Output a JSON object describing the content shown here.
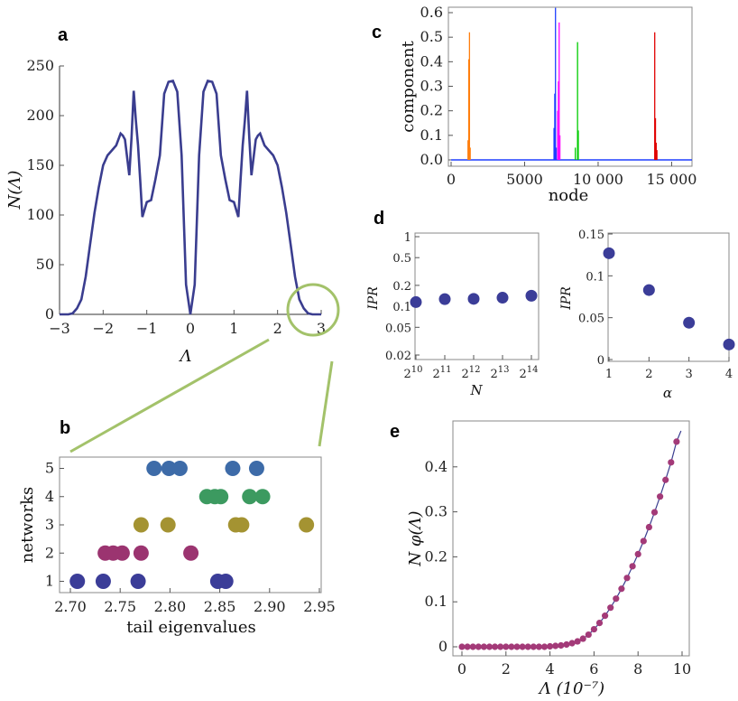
{
  "colors": {
    "navy": "#3a3d8f",
    "dot_navy": "#3b3d98",
    "magenta": "#9b3470",
    "olive": "#a49332",
    "green": "#3c9a60",
    "steelblue": "#3d6ba8",
    "highlight": "#a3c26a",
    "purple_dot": "#a33a78",
    "fit_line": "#3a3d8f"
  },
  "chart_data": [
    {
      "id": "a",
      "type": "line",
      "panel_label": "a",
      "xlabel": "Λ",
      "ylabel": "N(Λ)",
      "xlim": [
        -3,
        3
      ],
      "ylim": [
        0,
        250
      ],
      "xticks": [
        -3,
        -2,
        -1,
        0,
        1,
        2,
        3
      ],
      "xtick_labels": [
        "−3",
        "−2",
        "−1",
        "0",
        "1",
        "2",
        "3"
      ],
      "yticks": [
        0,
        50,
        100,
        150,
        200,
        250
      ],
      "ytick_labels": [
        "0",
        "50",
        "100",
        "150",
        "200",
        "250"
      ],
      "x": [
        0.0,
        0.1,
        0.2,
        0.3,
        0.4,
        0.5,
        0.6,
        0.7,
        0.8,
        0.9,
        1.0,
        1.1,
        1.15,
        1.2,
        1.25,
        1.3,
        1.35,
        1.4,
        1.45,
        1.5,
        1.55,
        1.6,
        1.7,
        1.8,
        1.9,
        2.0,
        2.1,
        2.2,
        2.3,
        2.4,
        2.5,
        2.6,
        2.7,
        2.8,
        2.9,
        3.0
      ],
      "y": [
        0,
        30,
        160,
        224,
        235,
        234,
        222,
        160,
        136,
        115,
        113,
        98,
        135,
        170,
        195,
        225,
        178,
        140,
        158,
        176,
        180,
        182,
        170,
        165,
        160,
        150,
        128,
        102,
        70,
        38,
        15,
        6,
        1,
        0,
        0,
        0
      ],
      "symmetric": true,
      "annotations": [
        "highlight circle at Λ = 3 (tail)"
      ]
    },
    {
      "id": "b",
      "type": "scatter",
      "panel_label": "b",
      "xlabel": "tail eigenvalues",
      "ylabel": "networks",
      "xlim": [
        2.7,
        2.95
      ],
      "ylim": [
        0.6,
        5.4
      ],
      "xticks": [
        2.7,
        2.75,
        2.8,
        2.85,
        2.9,
        2.95
      ],
      "xtick_labels": [
        "2.70",
        "2.75",
        "2.80",
        "2.85",
        "2.90",
        "2.95"
      ],
      "yticks": [
        1,
        2,
        3,
        4,
        5
      ],
      "ytick_labels": [
        "1",
        "2",
        "3",
        "4",
        "5"
      ],
      "series": [
        {
          "name": "1",
          "color": "#3b3d98",
          "y": 1,
          "x": [
            2.707,
            2.733,
            2.768,
            2.848,
            2.856
          ]
        },
        {
          "name": "2",
          "color": "#9b3470",
          "y": 2,
          "x": [
            2.735,
            2.743,
            2.752,
            2.771,
            2.821
          ]
        },
        {
          "name": "3",
          "color": "#a49332",
          "y": 3,
          "x": [
            2.771,
            2.798,
            2.866,
            2.872,
            2.937
          ]
        },
        {
          "name": "4",
          "color": "#3c9a60",
          "y": 4,
          "x": [
            2.837,
            2.845,
            2.851,
            2.88,
            2.893
          ]
        },
        {
          "name": "5",
          "color": "#3d6ba8",
          "y": 5,
          "x": [
            2.784,
            2.799,
            2.81,
            2.863,
            2.887
          ]
        }
      ]
    },
    {
      "id": "c",
      "type": "line",
      "panel_label": "c",
      "xlabel": "node",
      "ylabel": "component",
      "xlim": [
        0,
        16384
      ],
      "ylim": [
        0,
        0.6
      ],
      "xticks": [
        0,
        5000,
        10000,
        15000
      ],
      "xtick_labels": [
        "0",
        "5000",
        "10 000",
        "15 000"
      ],
      "yticks": [
        0.0,
        0.1,
        0.2,
        0.3,
        0.4,
        0.5,
        0.6
      ],
      "ytick_labels": [
        "0.0",
        "0.1",
        "0.2",
        "0.3",
        "0.4",
        "0.5",
        "0.6"
      ],
      "series": [
        {
          "name": "orange",
          "color": "#ff7f0e",
          "spikes": [
            [
              1250,
              0.52
            ],
            [
              1200,
              0.41
            ],
            [
              1150,
              0.08
            ],
            [
              1300,
              0.05
            ]
          ]
        },
        {
          "name": "blue",
          "color": "#1f3fff",
          "spikes": [
            [
              7100,
              0.62
            ],
            [
              7050,
              0.27
            ],
            [
              7000,
              0.13
            ],
            [
              7150,
              0.05
            ]
          ]
        },
        {
          "name": "magenta",
          "color": "#ff00ff",
          "spikes": [
            [
              7350,
              0.56
            ],
            [
              7300,
              0.32
            ],
            [
              7250,
              0.2
            ],
            [
              7400,
              0.1
            ]
          ]
        },
        {
          "name": "green",
          "color": "#00cc00",
          "spikes": [
            [
              8600,
              0.48
            ],
            [
              8650,
              0.12
            ],
            [
              8450,
              0.05
            ]
          ]
        },
        {
          "name": "red",
          "color": "#e00000",
          "spikes": [
            [
              13850,
              0.52
            ],
            [
              13900,
              0.17
            ],
            [
              13950,
              0.07
            ],
            [
              14000,
              0.04
            ]
          ]
        }
      ]
    },
    {
      "id": "d1",
      "type": "scatter",
      "panel_label": "d",
      "xlabel": "N",
      "ylabel": "IPR",
      "yscale": "log",
      "ylim": [
        0.02,
        1
      ],
      "xticks": [
        10,
        11,
        12,
        13,
        14
      ],
      "xtick_labels": [
        "2",
        "2",
        "2",
        "2",
        "2"
      ],
      "xtick_exponents": [
        "10",
        "11",
        "12",
        "13",
        "14"
      ],
      "yticks": [
        0.02,
        0.05,
        0.1,
        0.2,
        0.5,
        1
      ],
      "ytick_labels": [
        "0.02",
        "0.05",
        "0.1",
        "0.2",
        "0.5",
        "1"
      ],
      "x": [
        10,
        11,
        12,
        13,
        14
      ],
      "values": [
        0.115,
        0.127,
        0.128,
        0.133,
        0.142
      ]
    },
    {
      "id": "d2",
      "type": "scatter",
      "xlabel": "α",
      "ylabel": "IPR",
      "xlim": [
        1,
        4
      ],
      "ylim": [
        0,
        0.15
      ],
      "xticks": [
        1,
        2,
        3,
        4
      ],
      "xtick_labels": [
        "1",
        "2",
        "3",
        "4"
      ],
      "yticks": [
        0,
        0.05,
        0.1,
        0.15
      ],
      "ytick_labels": [
        "0",
        "0.05",
        "0.1",
        "0.15"
      ],
      "x": [
        1,
        2,
        3,
        4
      ],
      "values": [
        0.127,
        0.083,
        0.044,
        0.018
      ]
    },
    {
      "id": "e",
      "type": "scatter",
      "panel_label": "e",
      "xlabel": "Λ (10⁻⁷)",
      "ylabel": "N φ(Λ)",
      "xlim": [
        0,
        10
      ],
      "ylim": [
        0,
        0.5
      ],
      "xticks": [
        0,
        2,
        4,
        6,
        8,
        10
      ],
      "xtick_labels": [
        "0",
        "2",
        "4",
        "6",
        "8",
        "10"
      ],
      "yticks": [
        0,
        0.1,
        0.2,
        0.3,
        0.4
      ],
      "ytick_labels": [
        "0",
        "0.1",
        "0.2",
        "0.3",
        "0.4"
      ],
      "x": [
        0,
        0.25,
        0.5,
        0.75,
        1,
        1.25,
        1.5,
        1.75,
        2,
        2.25,
        2.5,
        2.75,
        3,
        3.25,
        3.5,
        3.75,
        4,
        4.25,
        4.5,
        4.75,
        5,
        5.25,
        5.5,
        5.75,
        6,
        6.25,
        6.5,
        6.75,
        7,
        7.25,
        7.5,
        7.75,
        8,
        8.25,
        8.5,
        8.75,
        9,
        9.25,
        9.5,
        9.75
      ],
      "values": [
        0,
        0,
        0,
        0,
        0,
        0,
        0,
        0,
        0,
        0,
        0,
        0,
        0,
        0,
        0,
        0,
        0.001,
        0.002,
        0.003,
        0.005,
        0.008,
        0.012,
        0.018,
        0.027,
        0.039,
        0.053,
        0.069,
        0.087,
        0.107,
        0.129,
        0.153,
        0.179,
        0.206,
        0.235,
        0.266,
        0.299,
        0.334,
        0.371,
        0.41,
        0.456
      ],
      "fit": "smooth line through points"
    }
  ]
}
